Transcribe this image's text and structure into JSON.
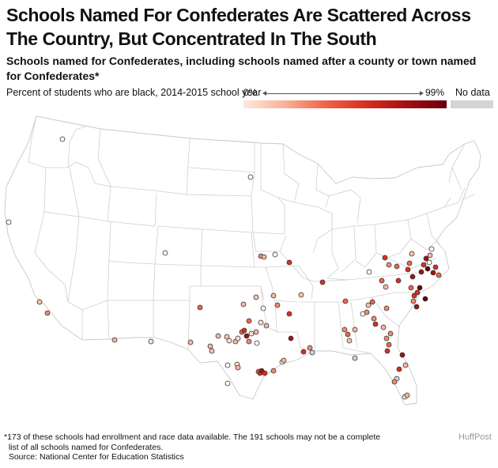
{
  "title": "Schools Named For Confederates Are Scattered Across The Country, But Concentrated In The South",
  "subtitle": "Schools named for Confederates, including schools named after a county or town named for Confederates*",
  "legend": {
    "label": "Percent of students who are black, 2014-2015 school year",
    "min_label": "0%",
    "max_label": "99%",
    "no_data_label": "No data",
    "no_data_color": "#d4d4d4",
    "scale_colors": [
      "#fde8dc",
      "#f9b39a",
      "#ef6548",
      "#d7301f",
      "#a50f15",
      "#67000d"
    ]
  },
  "footnote": {
    "line1": "*173 of these schools had enrollment and race data available. The 191 schools may not be a complete",
    "line2": "  list of all schools named for Confederates.",
    "line3": "  Source: National Center for Education Statistics"
  },
  "credit": "HuffPost"
}
